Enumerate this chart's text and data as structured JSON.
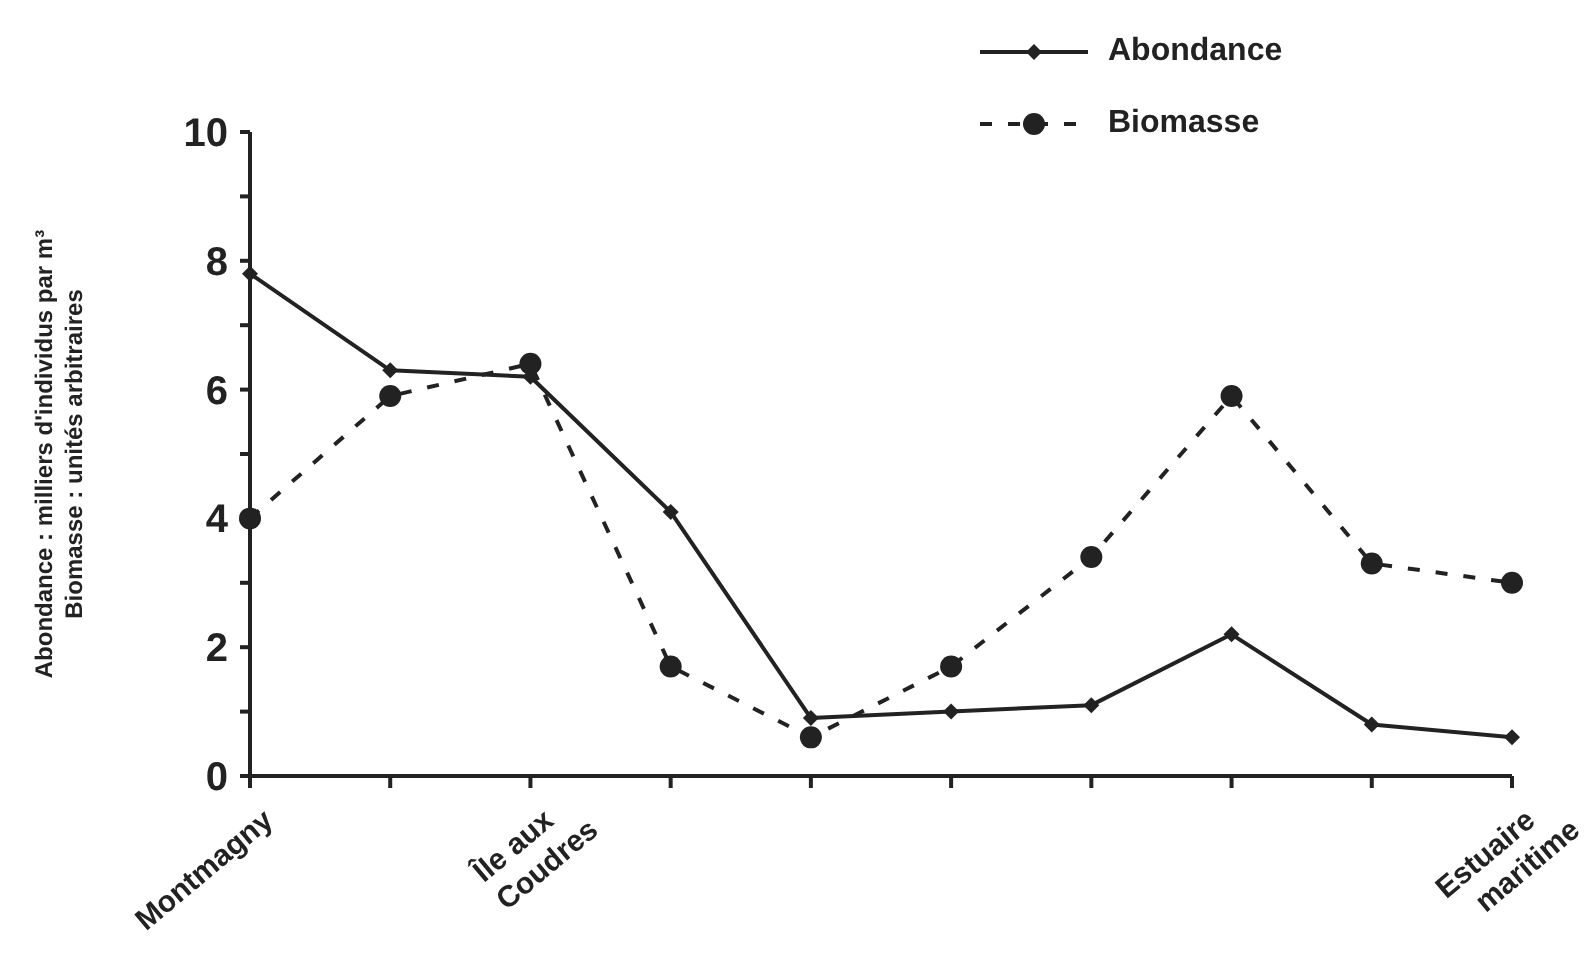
{
  "chart_data": {
    "type": "line",
    "ylabel": "Abondance : milliers d'individus par m³\nBiomasse : unités arbitraires",
    "categories": [
      "Montmagny",
      null,
      "Île aux Coudres",
      null,
      null,
      null,
      null,
      null,
      null,
      "Estuaire maritime"
    ],
    "ylim": [
      0,
      10
    ],
    "yticks": [
      0,
      {
        "value": 1,
        "label": null
      },
      2,
      {
        "value": 3,
        "label": null
      },
      4,
      {
        "value": 5,
        "label": null
      },
      6,
      {
        "value": 7,
        "label": null
      },
      8,
      {
        "value": 9,
        "label": null
      },
      10
    ],
    "series": [
      {
        "name": "Abondance",
        "color": "#222222",
        "marker": "diamond",
        "line_style": "solid",
        "values": [
          7.8,
          6.3,
          6.2,
          4.1,
          0.9,
          1.0,
          1.1,
          2.2,
          0.8,
          0.6
        ]
      },
      {
        "name": "Biomasse",
        "color": "#222222",
        "marker": "circle",
        "line_style": "dashed",
        "values": [
          4.0,
          5.9,
          6.4,
          1.7,
          0.6,
          1.7,
          3.4,
          5.9,
          3.3,
          3.0
        ]
      }
    ],
    "legend": "top right"
  }
}
